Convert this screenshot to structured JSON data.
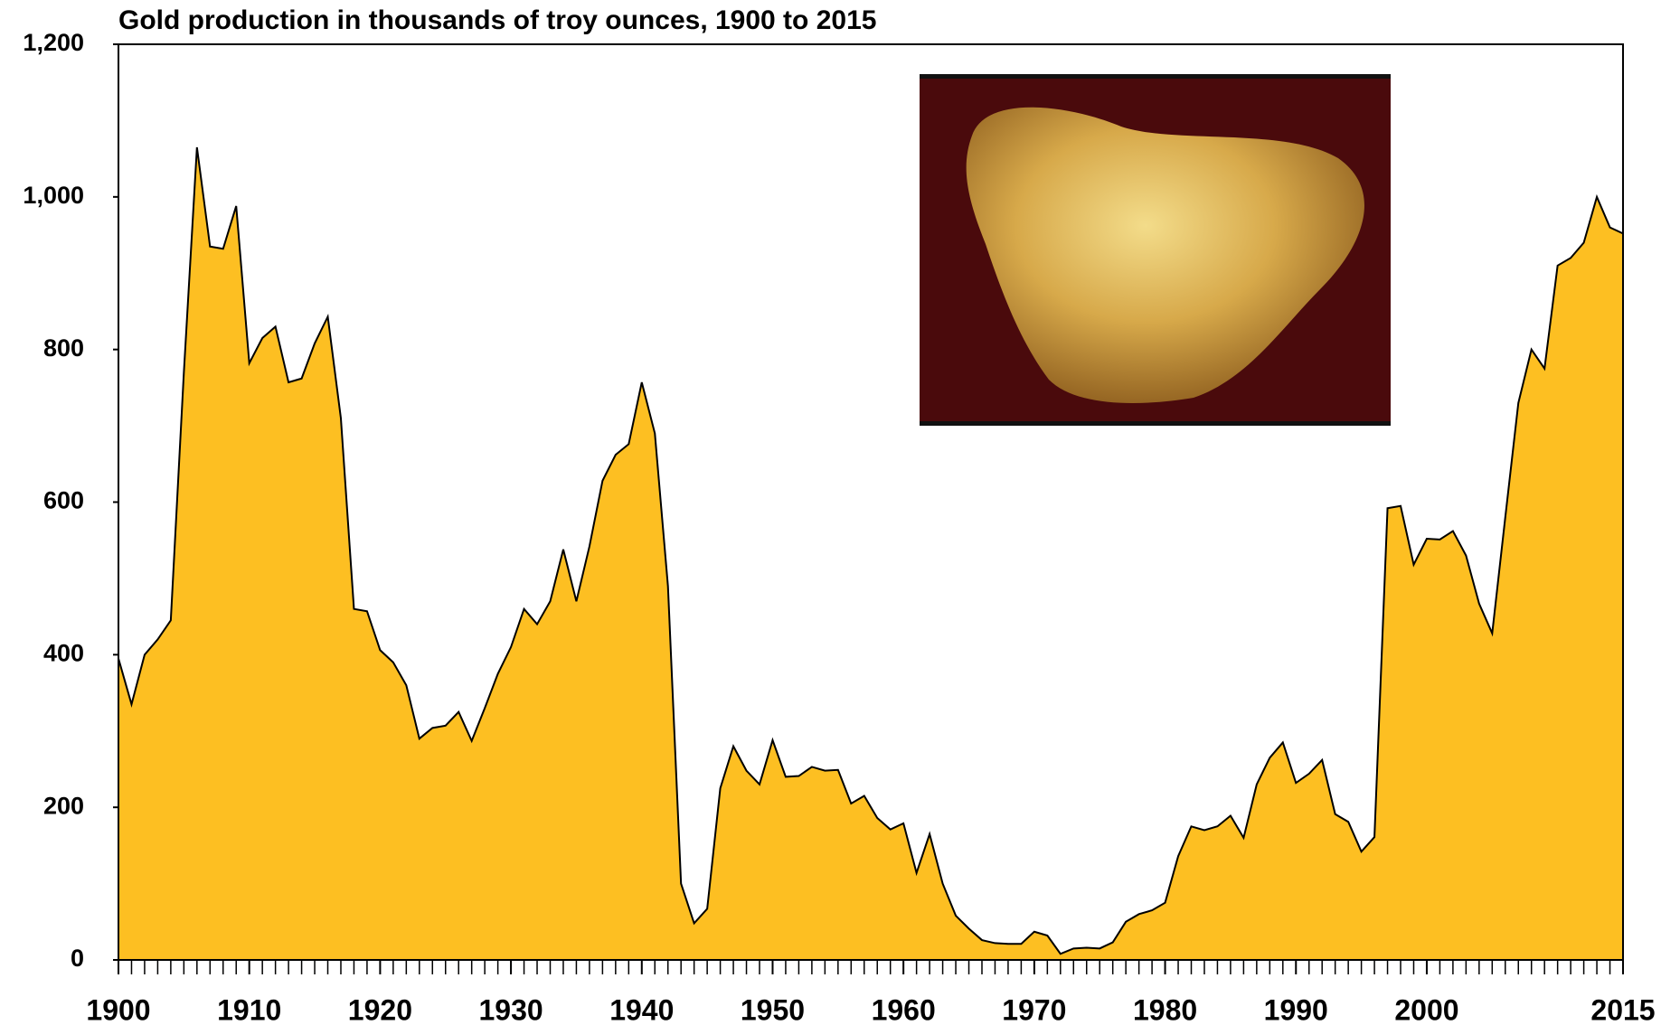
{
  "chart_data": {
    "type": "area",
    "title": "Gold production in thousands of troy ounces, 1900 to 2015",
    "x": [
      1900,
      1901,
      1902,
      1903,
      1904,
      1905,
      1906,
      1907,
      1908,
      1909,
      1910,
      1911,
      1912,
      1913,
      1914,
      1915,
      1916,
      1917,
      1918,
      1919,
      1920,
      1921,
      1922,
      1923,
      1924,
      1925,
      1926,
      1927,
      1928,
      1929,
      1930,
      1931,
      1932,
      1933,
      1934,
      1935,
      1936,
      1937,
      1938,
      1939,
      1940,
      1941,
      1942,
      1943,
      1944,
      1945,
      1946,
      1947,
      1948,
      1949,
      1950,
      1951,
      1952,
      1953,
      1954,
      1955,
      1956,
      1957,
      1958,
      1959,
      1960,
      1961,
      1962,
      1963,
      1964,
      1965,
      1966,
      1967,
      1968,
      1969,
      1970,
      1971,
      1972,
      1973,
      1974,
      1975,
      1976,
      1977,
      1978,
      1979,
      1980,
      1981,
      1982,
      1983,
      1984,
      1985,
      1986,
      1987,
      1988,
      1989,
      1990,
      1991,
      1992,
      1993,
      1994,
      1995,
      1996,
      1997,
      1998,
      1999,
      2000,
      2001,
      2002,
      2003,
      2004,
      2005,
      2006,
      2007,
      2008,
      2009,
      2010,
      2011,
      2012,
      2013,
      2014,
      2015
    ],
    "values": [
      395,
      335,
      400,
      420,
      445,
      770,
      1065,
      935,
      932,
      988,
      782,
      815,
      830,
      757,
      762,
      808,
      843,
      710,
      460,
      457,
      406,
      390,
      360,
      290,
      304,
      307,
      325,
      287,
      330,
      375,
      410,
      460,
      440,
      470,
      538,
      470,
      542,
      628,
      662,
      676,
      757,
      690,
      490,
      100,
      48,
      67,
      225,
      280,
      248,
      230,
      288,
      240,
      241,
      253,
      248,
      249,
      205,
      215,
      186,
      171,
      179,
      114,
      165,
      100,
      58,
      41,
      26,
      22,
      21,
      21,
      37,
      32,
      8,
      15,
      16,
      15,
      23,
      50,
      60,
      65,
      75,
      136,
      175,
      170,
      175,
      189,
      160,
      230,
      265,
      285,
      232,
      244,
      262,
      191,
      181,
      142,
      161,
      592,
      595,
      518,
      552,
      551,
      562,
      530,
      467,
      428,
      580,
      730,
      800,
      775,
      910,
      920,
      940,
      1000,
      960,
      952
    ],
    "color": "#fdbf22",
    "xlim": [
      1900,
      2015
    ],
    "xticks": [
      1900,
      1910,
      1920,
      1930,
      1940,
      1950,
      1960,
      1970,
      1980,
      1990,
      2000,
      2015
    ],
    "ylim": [
      0,
      1200
    ],
    "yticks": [
      0,
      200,
      400,
      600,
      800,
      {
        "value": 1000,
        "label": "1,000"
      },
      {
        "value": 1200,
        "label": "1,200"
      }
    ]
  }
}
